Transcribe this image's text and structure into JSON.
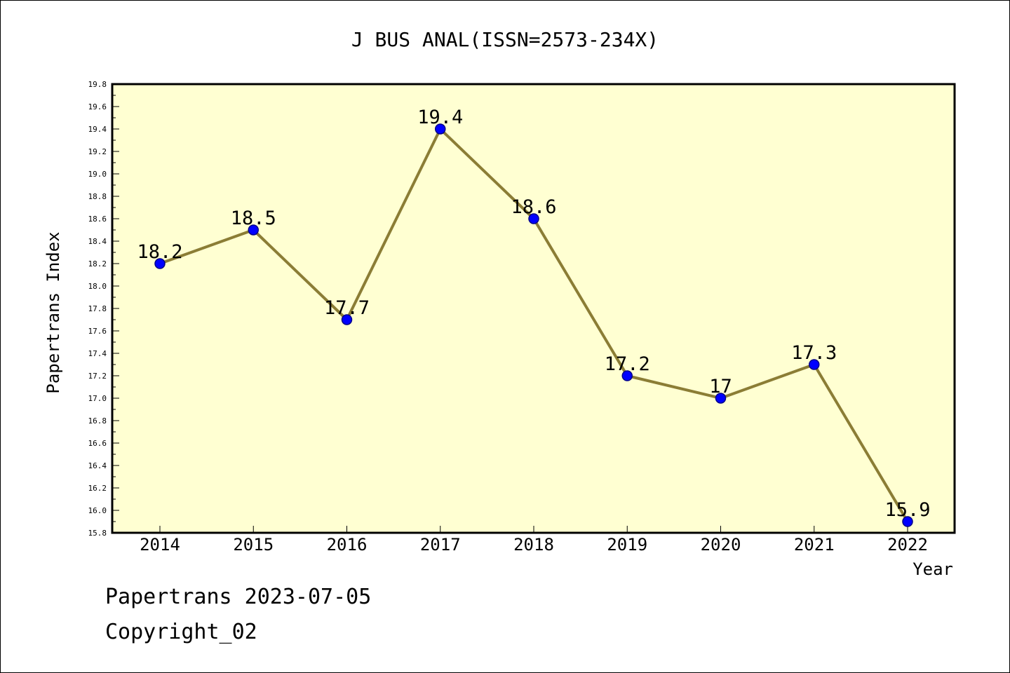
{
  "chart_data": {
    "type": "line",
    "title": "J BUS ANAL(ISSN=2573-234X)",
    "xlabel": "Year",
    "ylabel": "Papertrans Index",
    "categories": [
      "2014",
      "2015",
      "2016",
      "2017",
      "2018",
      "2019",
      "2020",
      "2021",
      "2022"
    ],
    "series": [
      {
        "name": "Papertrans Index",
        "values": [
          18.2,
          18.5,
          17.7,
          19.4,
          18.6,
          17.2,
          17.0,
          17.3,
          15.9
        ],
        "labels": [
          "18.2",
          "18.5",
          "17.7",
          "19.4",
          "18.6",
          "17.2",
          "17",
          "17.3",
          "15.9"
        ]
      }
    ],
    "ylim": [
      15.8,
      19.8
    ],
    "yticks": [
      "15.8",
      "16.0",
      "16.2",
      "16.4",
      "16.6",
      "16.8",
      "17.0",
      "17.2",
      "17.4",
      "17.6",
      "17.8",
      "18.0",
      "18.2",
      "18.4",
      "18.6",
      "18.8",
      "19.0",
      "19.2",
      "19.4",
      "19.6",
      "19.8"
    ],
    "grid": false,
    "colors": {
      "plot_background": "#ffffd2",
      "line": "#8b7d35",
      "marker_fill": "#0000ff",
      "marker_stroke": "#00008b"
    }
  },
  "footer": {
    "date_line": "Papertrans 2023-07-05",
    "copyright_line": "Copyright_02"
  }
}
